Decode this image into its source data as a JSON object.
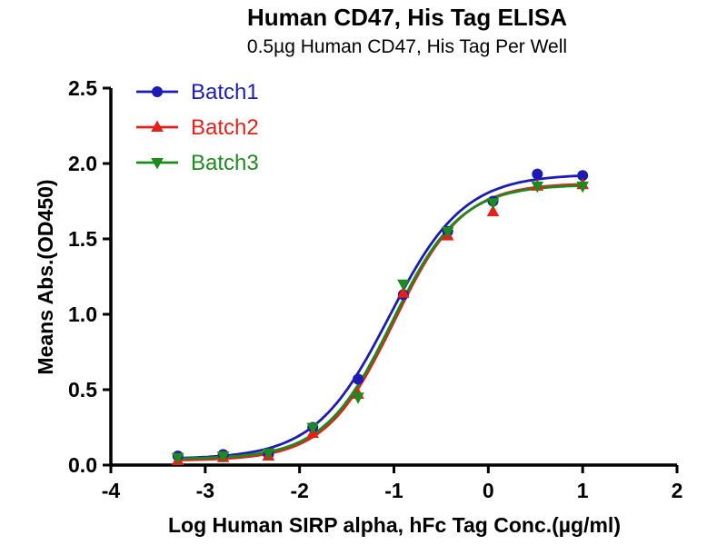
{
  "chart_data": {
    "type": "scatter",
    "title": "Human CD47, His Tag ELISA",
    "subtitle": "0.5µg Human CD47, His Tag  Per Well",
    "xlabel": "Log Human SIRP alpha, hFc Tag Conc.(µg/ml)",
    "ylabel": "Means Abs.(OD450)",
    "xlim": [
      -4,
      2
    ],
    "ylim": [
      0,
      2.5
    ],
    "xticks": [
      -4,
      -3,
      -2,
      -1,
      0,
      1,
      2
    ],
    "yticks": [
      0.0,
      0.5,
      1.0,
      1.5,
      2.0,
      2.5
    ],
    "grid": false,
    "legend_position": "top-left",
    "curve_model": "four-parameter logistic sigmoid fit through points",
    "x": [
      -3.29,
      -2.81,
      -2.33,
      -1.86,
      -1.38,
      -0.9,
      -0.43,
      0.05,
      0.52,
      1.0
    ],
    "series": [
      {
        "name": "Batch1",
        "color": "#1c1cb4",
        "marker": "circle",
        "values": [
          0.06,
          0.07,
          0.07,
          0.25,
          0.57,
          1.13,
          1.55,
          1.75,
          1.93,
          1.92
        ],
        "fit": {
          "bottom": 0.04,
          "top": 1.93,
          "logec50": -1.05,
          "hill": 1.1
        }
      },
      {
        "name": "Batch2",
        "color": "#e32119",
        "marker": "triangle-up",
        "values": [
          0.03,
          0.05,
          0.06,
          0.21,
          0.47,
          1.14,
          1.52,
          1.68,
          1.85,
          1.86
        ],
        "fit": {
          "bottom": 0.03,
          "top": 1.87,
          "logec50": -1.0,
          "hill": 1.2
        }
      },
      {
        "name": "Batch3",
        "color": "#1e8a1e",
        "marker": "triangle-down",
        "values": [
          0.05,
          0.06,
          0.08,
          0.25,
          0.45,
          1.2,
          1.55,
          1.74,
          1.85,
          1.85
        ],
        "fit": {
          "bottom": 0.04,
          "top": 1.86,
          "logec50": -1.02,
          "hill": 1.2
        }
      }
    ]
  }
}
